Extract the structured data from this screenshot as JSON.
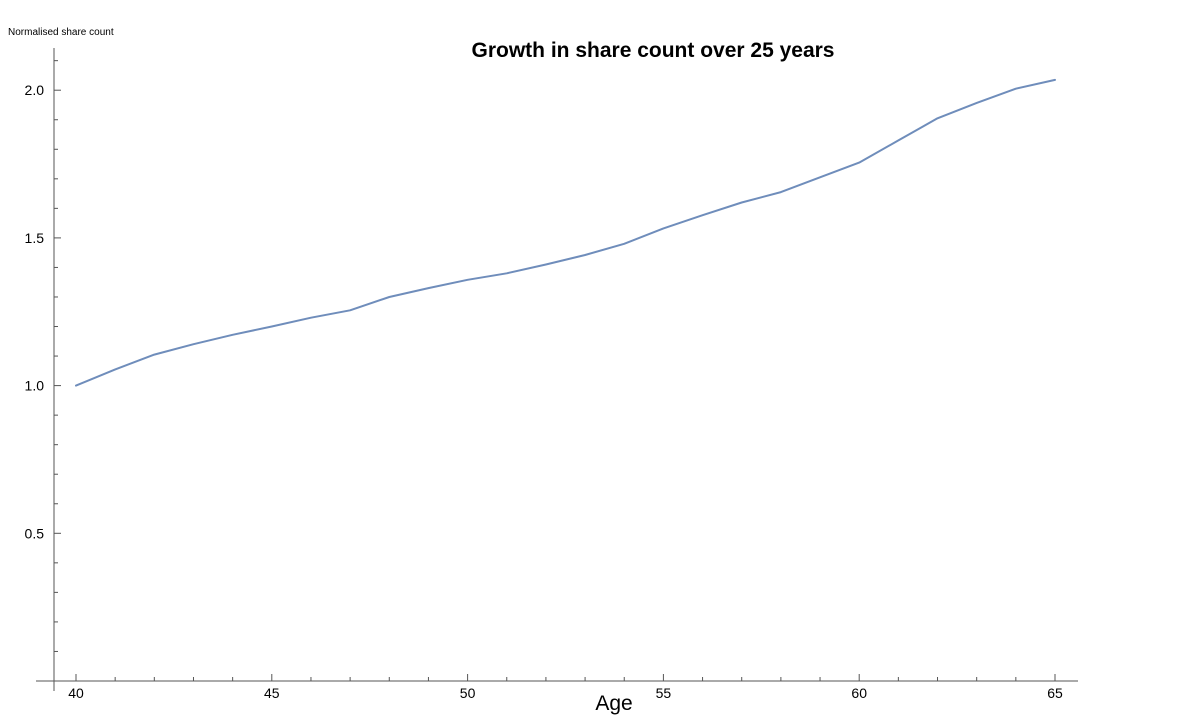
{
  "chart_data": {
    "type": "line",
    "title": "Growth in share count over 25 years",
    "xlabel": "Age",
    "ylabel": "Normalised share count",
    "xlim": [
      39.4,
      65.5
    ],
    "ylim": [
      0,
      2.2
    ],
    "x_ticks": [
      40,
      45,
      50,
      55,
      60,
      65
    ],
    "x_tick_labels": [
      "40",
      "45",
      "50",
      "55",
      "60",
      "65"
    ],
    "y_ticks": [
      0.5,
      1.0,
      1.5,
      2.0
    ],
    "y_tick_labels": [
      "0.5",
      "1.0",
      "1.5",
      "2.0"
    ],
    "grid": false,
    "series_color": "#6f8dbb",
    "x": [
      40,
      41,
      42,
      43,
      44,
      45,
      46,
      47,
      48,
      49,
      50,
      51,
      52,
      53,
      54,
      55,
      56,
      57,
      58,
      59,
      60,
      61,
      62,
      63,
      64,
      65
    ],
    "y": [
      1.0,
      1.055,
      1.105,
      1.14,
      1.172,
      1.2,
      1.23,
      1.255,
      1.3,
      1.33,
      1.358,
      1.38,
      1.41,
      1.442,
      1.48,
      1.532,
      1.577,
      1.62,
      1.655,
      1.705,
      1.755,
      1.83,
      1.905,
      1.957,
      2.005,
      2.035
    ]
  }
}
